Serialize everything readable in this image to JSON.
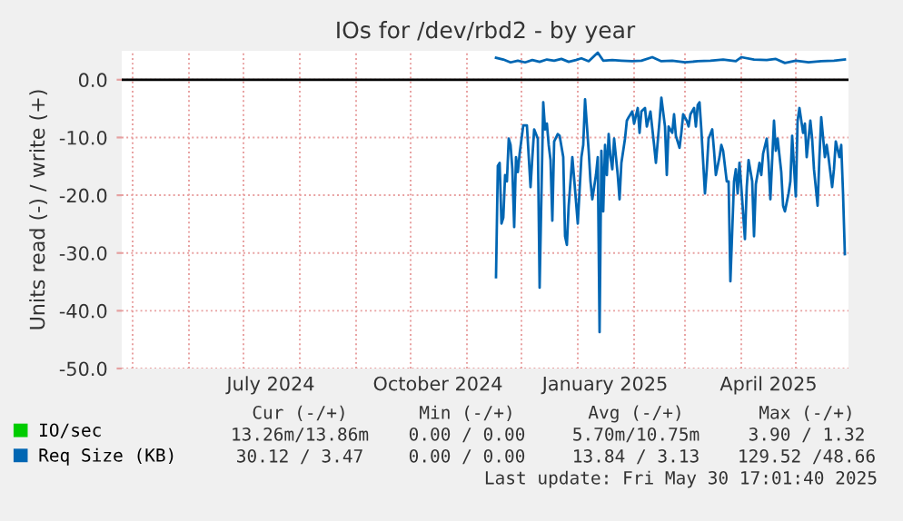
{
  "chart_data": {
    "type": "line",
    "title": "IOs for /dev/rbd2 - by year",
    "ylabel": "Units read (-) / write (+)",
    "x": [
      "2024-11-17",
      "2024-11-18",
      "2024-11-19",
      "2024-11-20",
      "2024-11-21",
      "2024-11-22",
      "2024-11-23",
      "2024-11-24",
      "2024-11-25",
      "2024-11-26",
      "2024-11-27",
      "2024-11-28",
      "2024-11-29",
      "2024-11-30",
      "2024-12-02",
      "2024-12-04",
      "2024-12-06",
      "2024-12-07",
      "2024-12-08",
      "2024-12-10",
      "2024-12-11",
      "2024-12-13",
      "2024-12-14",
      "2024-12-15",
      "2024-12-16",
      "2024-12-17",
      "2024-12-18",
      "2024-12-19",
      "2024-12-21",
      "2024-12-22",
      "2024-12-24",
      "2024-12-25",
      "2024-12-26",
      "2024-12-27",
      "2024-12-28",
      "2024-12-29",
      "2024-12-30",
      "2025-01-01",
      "2025-01-03",
      "2025-01-04",
      "2025-01-05",
      "2025-01-07",
      "2025-01-08",
      "2025-01-09",
      "2025-01-11",
      "2025-01-12",
      "2025-01-13",
      "2025-01-14",
      "2025-01-15",
      "2025-01-16",
      "2025-01-17",
      "2025-01-18",
      "2025-01-19",
      "2025-01-20",
      "2025-01-21",
      "2025-01-23",
      "2025-01-24",
      "2025-01-25",
      "2025-01-27",
      "2025-01-28",
      "2025-01-29",
      "2025-01-31",
      "2025-02-01",
      "2025-02-03",
      "2025-02-04",
      "2025-02-05",
      "2025-02-07",
      "2025-02-08",
      "2025-02-10",
      "2025-02-12",
      "2025-02-13",
      "2025-02-15",
      "2025-02-16",
      "2025-02-18",
      "2025-02-19",
      "2025-02-20",
      "2025-02-22",
      "2025-02-23",
      "2025-02-24",
      "2025-02-26",
      "2025-02-27",
      "2025-02-28",
      "2025-03-02",
      "2025-03-03",
      "2025-03-04",
      "2025-03-06",
      "2025-03-07",
      "2025-03-08",
      "2025-03-09",
      "2025-03-10",
      "2025-03-12",
      "2025-03-13",
      "2025-03-14",
      "2025-03-16",
      "2025-03-17",
      "2025-03-18",
      "2025-03-20",
      "2025-03-21",
      "2025-03-22",
      "2025-03-24",
      "2025-03-25",
      "2025-03-26",
      "2025-03-28",
      "2025-03-29",
      "2025-03-30",
      "2025-03-31",
      "2025-04-01",
      "2025-04-03",
      "2025-04-04",
      "2025-04-05",
      "2025-04-07",
      "2025-04-08",
      "2025-04-09",
      "2025-04-11",
      "2025-04-12",
      "2025-04-13",
      "2025-04-15",
      "2025-04-16",
      "2025-04-17",
      "2025-04-19",
      "2025-04-20",
      "2025-04-21",
      "2025-04-23",
      "2025-04-24",
      "2025-04-25",
      "2025-04-27",
      "2025-04-28",
      "2025-04-29",
      "2025-05-01",
      "2025-05-02",
      "2025-05-03",
      "2025-05-05",
      "2025-05-06",
      "2025-05-07",
      "2025-05-09",
      "2025-05-10",
      "2025-05-11",
      "2025-05-13",
      "2025-05-14",
      "2025-05-15",
      "2025-05-17",
      "2025-05-18",
      "2025-05-19",
      "2025-05-21",
      "2025-05-22",
      "2025-05-23",
      "2025-05-25",
      "2025-05-26",
      "2025-05-27",
      "2025-05-28"
    ],
    "series": [
      {
        "name": "IO/sec",
        "color": "#00cc00",
        "values": [
          null,
          null,
          null,
          null,
          null,
          null,
          null,
          null,
          null,
          null,
          null,
          null,
          null,
          null,
          null,
          null,
          null,
          null,
          null,
          null,
          null,
          null,
          null,
          null,
          null,
          null,
          null,
          null,
          null,
          null,
          null,
          null,
          null,
          null,
          null,
          null,
          null,
          null,
          null,
          null,
          null,
          null,
          null,
          null,
          null,
          null,
          null,
          null,
          null,
          null,
          null,
          null,
          null,
          null,
          null,
          null,
          null,
          null,
          null,
          null,
          null,
          null,
          null,
          null,
          null,
          null,
          null,
          null,
          null,
          null,
          null,
          null,
          null,
          null,
          null,
          null,
          null,
          null,
          null,
          null,
          null,
          null,
          null,
          null,
          null,
          null,
          null,
          null,
          null,
          null,
          null,
          null,
          null,
          null,
          null,
          null,
          null,
          null,
          null,
          null,
          null,
          null,
          null,
          null,
          null,
          null,
          null,
          null,
          null,
          null,
          null,
          null,
          null,
          null,
          null,
          null,
          null,
          null,
          null,
          null,
          null,
          null,
          null,
          null,
          null,
          null,
          null,
          null,
          null,
          null,
          null,
          null,
          null,
          null,
          null,
          null,
          null,
          null,
          null,
          null,
          null,
          null,
          null,
          null,
          null,
          null,
          null,
          null,
          null,
          null
        ]
      },
      {
        "name": "Req Size (KB)",
        "color": "#0066b3",
        "x": [
          "2024-11-17",
          "2024-11-21",
          "2024-11-25",
          "2024-11-29",
          "2024-12-03",
          "2024-12-07",
          "2024-12-11",
          "2024-12-15",
          "2024-12-19",
          "2024-12-23",
          "2024-12-27",
          "2024-12-31",
          "2025-01-03",
          "2025-01-07",
          "2025-01-12",
          "2025-01-15",
          "2025-01-20",
          "2025-01-25",
          "2025-01-31",
          "2025-02-05",
          "2025-02-11",
          "2025-02-16",
          "2025-02-22",
          "2025-03-01",
          "2025-03-08",
          "2025-03-15",
          "2025-03-22",
          "2025-03-29",
          "2025-04-01",
          "2025-04-08",
          "2025-04-15",
          "2025-04-20",
          "2025-04-25",
          "2025-05-01",
          "2025-05-08",
          "2025-05-15",
          "2025-05-22",
          "2025-05-28"
        ],
        "values": [
          3.8,
          3.5,
          3.0,
          3.3,
          3.0,
          3.4,
          3.1,
          3.5,
          3.3,
          3.6,
          3.1,
          3.4,
          3.7,
          3.2,
          4.7,
          3.3,
          3.4,
          3.3,
          3.2,
          3.3,
          3.9,
          3.2,
          3.3,
          3.0,
          3.2,
          3.3,
          3.5,
          3.2,
          3.9,
          3.5,
          3.4,
          3.6,
          2.9,
          3.3,
          3.0,
          3.2,
          3.3,
          3.5
        ]
      },
      {
        "color": "#0066b3",
        "values": [
          -34.2,
          -14.9,
          -14.4,
          -24.9,
          -23.9,
          -16.5,
          -17.6,
          -10.2,
          -11.3,
          -15.5,
          -25.5,
          -13.4,
          -16.0,
          -12.8,
          -7.9,
          -7.9,
          -18.6,
          -13.4,
          -8.6,
          -10.2,
          -36.0,
          -3.9,
          -8.6,
          -7.6,
          -11.3,
          -13.9,
          -24.4,
          -10.7,
          -9.4,
          -9.7,
          -13.4,
          -27.1,
          -28.6,
          -21.8,
          -17.6,
          -13.4,
          -17.1,
          -24.9,
          -13.4,
          -11.3,
          -3.4,
          -12.3,
          -17.6,
          -20.7,
          -16.5,
          -13.4,
          -43.7,
          -12.3,
          -22.8,
          -11.3,
          -16.5,
          -9.4,
          -13.4,
          -15.5,
          -10.2,
          -16.5,
          -20.7,
          -14.4,
          -10.2,
          -7.1,
          -6.5,
          -5.5,
          -7.6,
          -4.9,
          -9.2,
          -5.5,
          -4.9,
          -8.1,
          -5.5,
          -11.3,
          -14.4,
          -7.1,
          -3.1,
          -8.1,
          -16.5,
          -8.1,
          -9.2,
          -6.0,
          -9.7,
          -11.8,
          -9.2,
          -6.0,
          -7.1,
          -8.1,
          -6.0,
          -4.9,
          -8.1,
          -4.4,
          -3.9,
          -8.6,
          -19.7,
          -15.5,
          -10.2,
          -8.6,
          -12.3,
          -16.5,
          -13.4,
          -11.3,
          -12.3,
          -17.6,
          -17.6,
          -34.9,
          -17.6,
          -15.5,
          -19.7,
          -14.4,
          -18.6,
          -27.6,
          -18.6,
          -13.9,
          -17.6,
          -27.1,
          -18.1,
          -14.4,
          -16.5,
          -12.8,
          -10.2,
          -14.4,
          -20.7,
          -7.1,
          -12.3,
          -10.2,
          -16.0,
          -21.8,
          -22.8,
          -19.7,
          -17.6,
          -9.7,
          -20.2,
          -7.1,
          -4.9,
          -9.2,
          -7.6,
          -13.4,
          -7.1,
          -10.2,
          -15.5,
          -21.8,
          -13.4,
          -6.5,
          -13.4,
          -11.3,
          -13.4,
          -18.6,
          -15.5,
          -10.7,
          -13.4,
          -11.3,
          -19.7,
          -30.2
        ]
      }
    ],
    "xlim": [
      "2024-04-25",
      "2025-05-30"
    ],
    "xticks": [
      {
        "value": "2024-05-01",
        "label": null
      },
      {
        "value": "2024-06-01",
        "label": null
      },
      {
        "value": "2024-07-01",
        "label": null
      },
      {
        "value": "2024-07-16",
        "label": "July 2024"
      },
      {
        "value": "2024-08-01",
        "label": null
      },
      {
        "value": "2024-09-01",
        "label": null
      },
      {
        "value": "2024-10-01",
        "label": null
      },
      {
        "value": "2024-10-16",
        "label": "October 2024"
      },
      {
        "value": "2024-11-01",
        "label": null
      },
      {
        "value": "2024-12-01",
        "label": null
      },
      {
        "value": "2025-01-01",
        "label": null
      },
      {
        "value": "2025-01-16",
        "label": "January 2025"
      },
      {
        "value": "2025-02-01",
        "label": null
      },
      {
        "value": "2025-03-01",
        "label": null
      },
      {
        "value": "2025-04-01",
        "label": null
      },
      {
        "value": "2025-04-16",
        "label": "April 2025"
      },
      {
        "value": "2025-05-01",
        "label": null
      }
    ],
    "ylim": [
      -50,
      5
    ],
    "yticks": [
      {
        "value": 0,
        "label": "0.0"
      },
      {
        "value": -10,
        "label": "-10.0"
      },
      {
        "value": -20,
        "label": "-20.0"
      },
      {
        "value": -30,
        "label": "-30.0"
      },
      {
        "value": -40,
        "label": "-40.0"
      },
      {
        "value": -50,
        "label": "-50.0"
      }
    ],
    "ref_lines": [
      {
        "axis": "y",
        "value": 0,
        "color": "#000000"
      }
    ],
    "grid": true,
    "legend": "bottom left",
    "line_style": "solid",
    "marker": "none",
    "annotations": [
      "Cur (-/+)",
      "Min (-/+)",
      "Avg (-/+)",
      "Max (-/+)",
      "13.26m/13.86m",
      "0.00 / 0.00",
      "5.70m/10.75m",
      "3.90 / 1.32",
      "30.12 / 3.47",
      "0.00 / 0.00",
      "13.84 / 3.13",
      "129.52 /48.66",
      "Last update: Fri May 30 17:01:40 2025"
    ]
  }
}
